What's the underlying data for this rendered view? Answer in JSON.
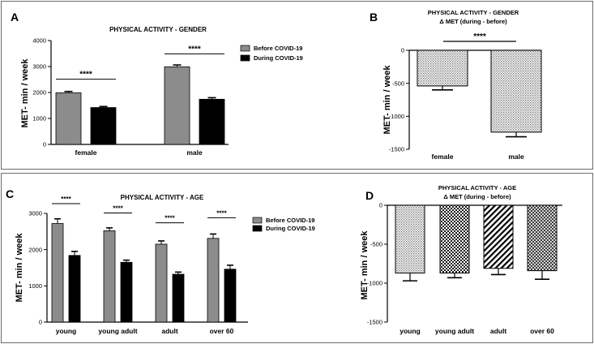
{
  "chart_data": [
    {
      "id": "A",
      "letter": "A",
      "type": "bar",
      "title": "PHYSICAL ACTIVITY - GENDER",
      "ylabel": "MET- min / week",
      "ylim": [
        0,
        4000
      ],
      "yticks": [
        0,
        1000,
        2000,
        3000,
        4000
      ],
      "categories": [
        "female",
        "male"
      ],
      "series": [
        {
          "name": "Before COVID-19",
          "color": "#8c8c8c",
          "values": [
            1990,
            2990
          ],
          "errors": [
            50,
            70
          ]
        },
        {
          "name": "During COVID-19",
          "color": "#000000",
          "values": [
            1420,
            1740
          ],
          "errors": [
            40,
            60
          ]
        }
      ],
      "significance": [
        "****",
        "****"
      ]
    },
    {
      "id": "B",
      "letter": "B",
      "type": "bar",
      "title": "PHYSICAL ACTIVITY - GENDER",
      "subtitle": "Δ MET (during - before)",
      "ylabel": "MET- min / week",
      "ylim": [
        -1500,
        0
      ],
      "yticks": [
        0,
        -500,
        -1000,
        -1500
      ],
      "categories": [
        "female",
        "male"
      ],
      "values": [
        -540,
        -1240
      ],
      "errors": [
        60,
        70
      ],
      "patterns": [
        "dots-fine",
        "dots-fine"
      ],
      "significance": "****"
    },
    {
      "id": "C",
      "letter": "C",
      "type": "bar",
      "title": "PHYSICAL ACTIVITY - AGE",
      "ylabel": "MET- min / week",
      "ylim": [
        0,
        3000
      ],
      "yticks": [
        0,
        1000,
        2000,
        3000
      ],
      "categories": [
        "young",
        "young adult",
        "adult",
        "over 60"
      ],
      "series": [
        {
          "name": "Before COVID-19",
          "color": "#8c8c8c",
          "values": [
            2720,
            2520,
            2150,
            2310
          ],
          "errors": [
            130,
            80,
            90,
            120
          ]
        },
        {
          "name": "During COVID-19",
          "color": "#000000",
          "values": [
            1840,
            1650,
            1320,
            1460
          ],
          "errors": [
            110,
            60,
            60,
            110
          ]
        }
      ],
      "significance": [
        "****",
        "****",
        "****",
        "****"
      ]
    },
    {
      "id": "D",
      "letter": "D",
      "type": "bar",
      "title": "PHYSICAL ACTIVITY - AGE",
      "subtitle": "Δ MET (during - before)",
      "ylabel": "MET- min / week",
      "ylim": [
        -1500,
        0
      ],
      "yticks": [
        0,
        -500,
        -1000,
        -1500
      ],
      "categories": [
        "young",
        "young adult",
        "adult",
        "over 60"
      ],
      "values": [
        -870,
        -870,
        -810,
        -840
      ],
      "errors": [
        100,
        60,
        80,
        110
      ],
      "patterns": [
        "dots-fine",
        "checker",
        "diagonal",
        "crosshatch"
      ]
    }
  ]
}
